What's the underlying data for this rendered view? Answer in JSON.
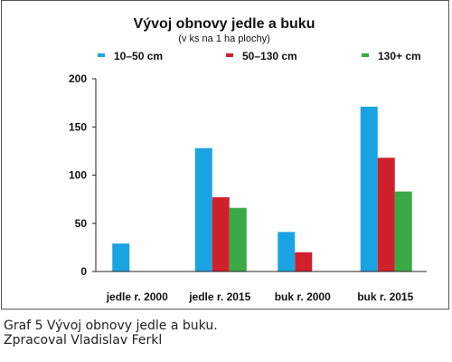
{
  "chart_data": {
    "type": "bar",
    "title": "Vývoj obnovy jedle a buku",
    "subtitle": "(v ks na 1 ha plochy)",
    "categories": [
      "jedle r. 2000",
      "jedle r. 2015",
      "buk r. 2000",
      "buk r. 2015"
    ],
    "series": [
      {
        "name": "10–50 cm",
        "color": "#1aa3e3",
        "values": [
          29,
          128,
          41,
          171
        ]
      },
      {
        "name": "50–130 cm",
        "color": "#d0202b",
        "values": [
          0,
          77,
          20,
          118
        ]
      },
      {
        "name": "130+ cm",
        "color": "#3aaa45",
        "values": [
          0,
          66,
          0,
          83
        ]
      }
    ],
    "y_ticks": [
      "0",
      "50",
      "100",
      "150",
      "200"
    ],
    "ylim": [
      0,
      200
    ],
    "grid": false,
    "legend": "top"
  },
  "caption": {
    "line1": "Graf 5 Vývoj obnovy jedle a buku.",
    "line2": "Zpracoval Vladislav Ferkl"
  }
}
